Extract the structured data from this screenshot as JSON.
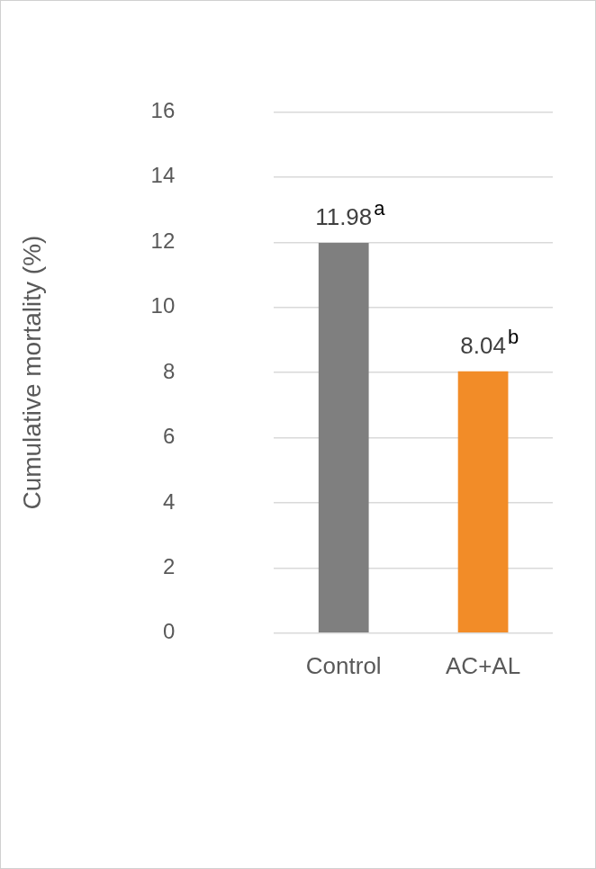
{
  "chart_data": {
    "type": "bar",
    "y_label": "Cumulative mortality (%)",
    "categories": [
      "Control",
      "AC+AL"
    ],
    "values": [
      11.98,
      8.04
    ],
    "colors": [
      "#7f7f7f",
      "#f28c28"
    ],
    "annotations": [
      "a",
      "b"
    ],
    "ylim": [
      0,
      16
    ],
    "yticks": [
      0,
      2,
      4,
      6,
      8,
      10,
      12,
      14,
      16
    ],
    "grid": true,
    "data_labels": true
  }
}
